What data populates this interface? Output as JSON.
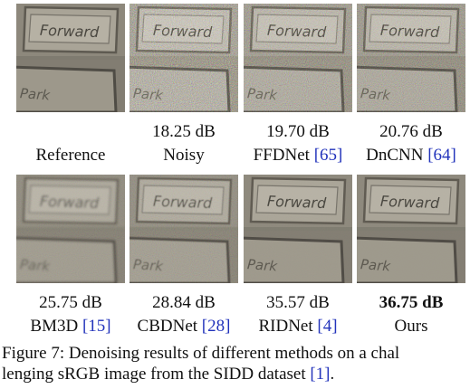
{
  "rows": [
    [
      {
        "psnr": "",
        "name": "Reference",
        "ref": "",
        "noise": 0.0,
        "blur": 0
      },
      {
        "psnr": "18.25 dB",
        "name": "Noisy",
        "ref": "",
        "noise": 1.0,
        "blur": 0
      },
      {
        "psnr": "19.70 dB",
        "name": "FFDNet ",
        "ref": "[65]",
        "noise": 0.8,
        "blur": 0
      },
      {
        "psnr": "20.76 dB",
        "name": "DnCNN ",
        "ref": "[64]",
        "noise": 0.7,
        "blur": 0
      }
    ],
    [
      {
        "psnr": "25.75 dB",
        "name": "BM3D ",
        "ref": "[15]",
        "noise": 0.2,
        "blur": 1.2
      },
      {
        "psnr": "28.84 dB",
        "name": "CBDNet ",
        "ref": "[28]",
        "noise": 0.3,
        "blur": 0.6
      },
      {
        "psnr": "35.57 dB",
        "name": "RIDNet ",
        "ref": "[4]",
        "noise": 0.05,
        "blur": 0.3
      },
      {
        "psnr": "36.75 dB",
        "name": "Ours",
        "ref": "",
        "noise": 0.03,
        "blur": 0.2,
        "best": true
      }
    ]
  ],
  "image_text": {
    "word1": "Forward",
    "word2": "Park"
  },
  "caption": {
    "text": "Figure 7: Denoising results of different methods on a chal",
    "line2_pre": "lenging sRGB image from the SIDD dataset ",
    "line2_ref": "[1]",
    "line2_post": "."
  },
  "colors": {
    "citation": "#2233bb"
  }
}
